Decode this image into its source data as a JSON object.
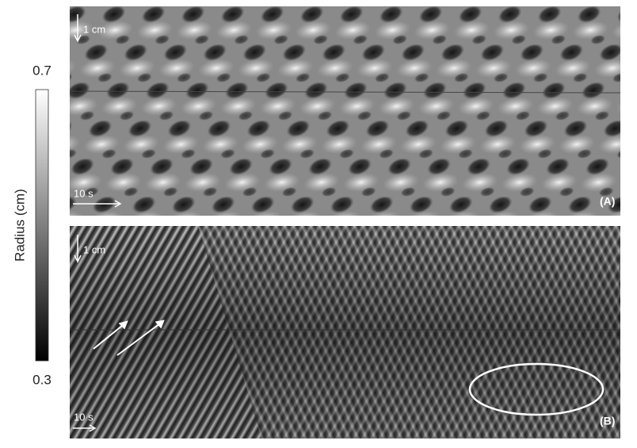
{
  "colorbar": {
    "label": "Radius (cm)",
    "max": 0.7,
    "min": 0.3
  },
  "panels": [
    {
      "tag": "(A)",
      "space_scale": "1 cm",
      "time_scale": "10 s"
    },
    {
      "tag": "(B)",
      "space_scale": "1 cm",
      "time_scale": "10 s"
    }
  ]
}
